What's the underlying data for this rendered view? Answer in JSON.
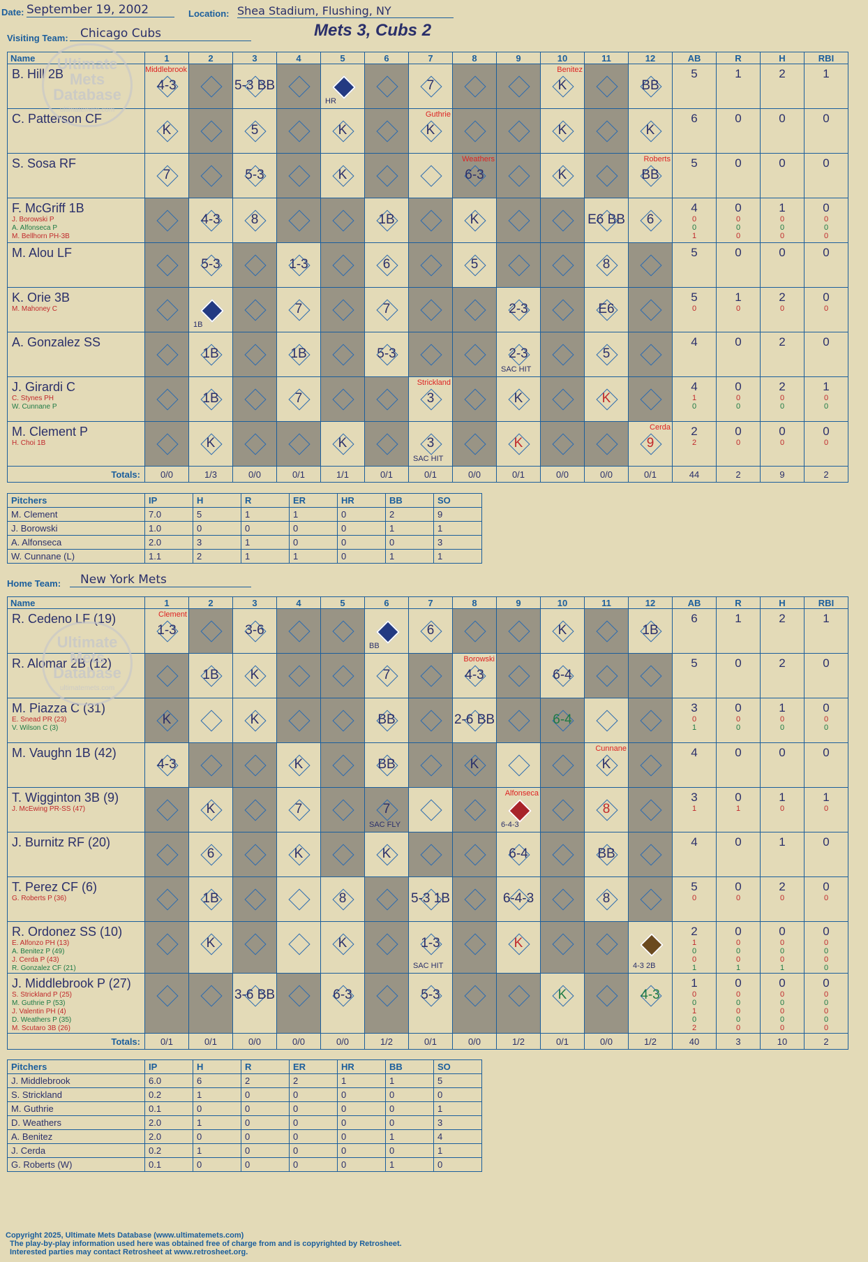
{
  "header": {
    "date_label": "Date:",
    "date": "September 19, 2002",
    "location_label": "Location:",
    "location": "Shea Stadium, Flushing, NY",
    "visiting_label": "Visiting Team:",
    "visiting_team": "Chicago Cubs",
    "title": "Mets 3, Cubs 2",
    "home_label": "Home Team:",
    "home_team": "New York Mets"
  },
  "watermark": {
    "line1": "Ultimate",
    "line2": "Mets",
    "line3": "Database",
    "url": "ultimatemets.com"
  },
  "columns": {
    "name": "Name",
    "innings": [
      "1",
      "2",
      "3",
      "4",
      "5",
      "6",
      "7",
      "8",
      "9",
      "10",
      "11",
      "12"
    ],
    "stats": [
      "AB",
      "R",
      "H",
      "RBI"
    ]
  },
  "visitors": {
    "batters": [
      {
        "name": "B. Hill 2B",
        "subs": [],
        "stats": [
          "5",
          "1",
          "2",
          "1"
        ],
        "sub_stats": []
      },
      {
        "name": "C. Patterson CF",
        "subs": [],
        "stats": [
          "6",
          "0",
          "0",
          "0"
        ],
        "sub_stats": []
      },
      {
        "name": "S. Sosa RF",
        "subs": [],
        "stats": [
          "5",
          "0",
          "0",
          "0"
        ],
        "sub_stats": []
      },
      {
        "name": "F. McGriff 1B",
        "subs": [
          "J. Borowski P",
          "A. Alfonseca P",
          "M. Bellhorn PH-3B"
        ],
        "stats": [
          "4",
          "0",
          "1",
          "0"
        ],
        "sub_stats": [
          "0 0 0 0",
          "0 0 0 0",
          "1 0 0 0"
        ]
      },
      {
        "name": "M. Alou LF",
        "subs": [],
        "stats": [
          "5",
          "0",
          "0",
          "0"
        ],
        "sub_stats": []
      },
      {
        "name": "K. Orie 3B",
        "subs": [
          "M. Mahoney C"
        ],
        "stats": [
          "5",
          "1",
          "2",
          "0"
        ],
        "sub_stats": [
          "0 0 0 0"
        ]
      },
      {
        "name": "A. Gonzalez SS",
        "subs": [],
        "stats": [
          "4",
          "0",
          "2",
          "0"
        ],
        "sub_stats": []
      },
      {
        "name": "J. Girardi C",
        "subs": [
          "C. Stynes PH",
          "W. Cunnane P"
        ],
        "stats": [
          "4",
          "0",
          "2",
          "1"
        ],
        "sub_stats": [
          "1 0 0 0",
          "0 0 0 0"
        ]
      },
      {
        "name": "M. Clement P",
        "subs": [
          "H. Choi 1B"
        ],
        "stats": [
          "2",
          "0",
          "0",
          "0"
        ],
        "sub_stats": [
          "2 0 0 0"
        ]
      }
    ],
    "totals_label": "Totals:",
    "totals_rh": [
      "0/0",
      "1/3",
      "0/0",
      "0/1",
      "1/1",
      "0/1",
      "0/1",
      "0/0",
      "0/1",
      "0/0",
      "0/0",
      "0/1"
    ],
    "totals": [
      "44",
      "2",
      "9",
      "2"
    ],
    "pitchers_header": [
      "Pitchers",
      "IP",
      "H",
      "R",
      "ER",
      "HR",
      "BB",
      "SO"
    ],
    "pitchers": [
      [
        "M. Clement",
        "7.0",
        "5",
        "1",
        "1",
        "0",
        "2",
        "9"
      ],
      [
        "J. Borowski",
        "1.0",
        "0",
        "0",
        "0",
        "0",
        "1",
        "1"
      ],
      [
        "A. Alfonseca",
        "2.0",
        "3",
        "1",
        "0",
        "0",
        "0",
        "3"
      ],
      [
        "W. Cunnane (L)",
        "1.1",
        "2",
        "1",
        "1",
        "0",
        "1",
        "1"
      ]
    ]
  },
  "home": {
    "batters": [
      {
        "name": "R. Cedeno LF (19)",
        "subs": [],
        "stats": [
          "6",
          "1",
          "2",
          "1"
        ],
        "sub_stats": []
      },
      {
        "name": "R. Alomar 2B (12)",
        "subs": [],
        "stats": [
          "5",
          "0",
          "2",
          "0"
        ],
        "sub_stats": []
      },
      {
        "name": "M. Piazza C (31)",
        "subs": [
          "E. Snead PR (23)",
          "V. Wilson C (3)"
        ],
        "stats": [
          "3",
          "0",
          "1",
          "0"
        ],
        "sub_stats": [
          "0 0 0 0",
          "1 0 0 0"
        ]
      },
      {
        "name": "M. Vaughn 1B (42)",
        "subs": [],
        "stats": [
          "4",
          "0",
          "0",
          "0"
        ],
        "sub_stats": []
      },
      {
        "name": "T. Wigginton 3B (9)",
        "subs": [
          "J. McEwing PR-SS (47)"
        ],
        "stats": [
          "3",
          "0",
          "1",
          "1"
        ],
        "sub_stats": [
          "1 1 0 0"
        ]
      },
      {
        "name": "J. Burnitz RF (20)",
        "subs": [],
        "stats": [
          "4",
          "0",
          "1",
          "0"
        ],
        "sub_stats": []
      },
      {
        "name": "T. Perez CF (6)",
        "subs": [
          "G. Roberts P (36)"
        ],
        "stats": [
          "5",
          "0",
          "2",
          "0"
        ],
        "sub_stats": [
          "0 0 0 0"
        ]
      },
      {
        "name": "R. Ordonez SS (10)",
        "subs": [
          "E. Alfonzo PH (13)",
          "A. Benitez P (49)",
          "J. Cerda P (43)",
          "R. Gonzalez CF (21)"
        ],
        "stats": [
          "2",
          "0",
          "0",
          "0"
        ],
        "sub_stats": [
          "1 0 0 0",
          "0 0 0 0",
          "0 0 0 0",
          "1 1 1 0"
        ]
      },
      {
        "name": "J. Middlebrook P (27)",
        "subs": [
          "S. Strickland P (25)",
          "M. Guthrie P (53)",
          "J. Valentin PH (4)",
          "D. Weathers P (35)",
          "M. Scutaro 3B (26)"
        ],
        "stats": [
          "1",
          "0",
          "0",
          "0"
        ],
        "sub_stats": [
          "0 0 0 0",
          "0 0 0 0",
          "1 0 0 0",
          "0 0 0 0",
          "2 0 0 0"
        ]
      }
    ],
    "totals_label": "Totals:",
    "totals_rh": [
      "0/1",
      "0/1",
      "0/0",
      "0/0",
      "0/0",
      "1/2",
      "0/1",
      "0/0",
      "1/2",
      "0/1",
      "0/0",
      "1/2"
    ],
    "totals": [
      "40",
      "3",
      "10",
      "2"
    ],
    "pitchers_header": [
      "Pitchers",
      "IP",
      "H",
      "R",
      "ER",
      "HR",
      "BB",
      "SO"
    ],
    "pitchers": [
      [
        "J. Middlebrook",
        "6.0",
        "6",
        "2",
        "2",
        "1",
        "1",
        "5"
      ],
      [
        "S. Strickland",
        "0.2",
        "1",
        "0",
        "0",
        "0",
        "0",
        "0"
      ],
      [
        "M. Guthrie",
        "0.1",
        "0",
        "0",
        "0",
        "0",
        "0",
        "1"
      ],
      [
        "D. Weathers",
        "2.0",
        "1",
        "0",
        "0",
        "0",
        "0",
        "3"
      ],
      [
        "A. Benitez",
        "2.0",
        "0",
        "0",
        "0",
        "0",
        "1",
        "4"
      ],
      [
        "J. Cerda",
        "0.2",
        "1",
        "0",
        "0",
        "0",
        "0",
        "1"
      ],
      [
        "G. Roberts (W)",
        "0.1",
        "0",
        "0",
        "0",
        "0",
        "1",
        "0"
      ]
    ]
  },
  "footer": {
    "line1": "Copyright 2025, Ultimate Mets Database (www.ultimatemets.com)",
    "line2": "The play-by-play information used here was obtained free of charge from and is copyrighted by Retrosheet.",
    "line3": "Interested parties may contact Retrosheet at www.retrosheet.org."
  }
}
